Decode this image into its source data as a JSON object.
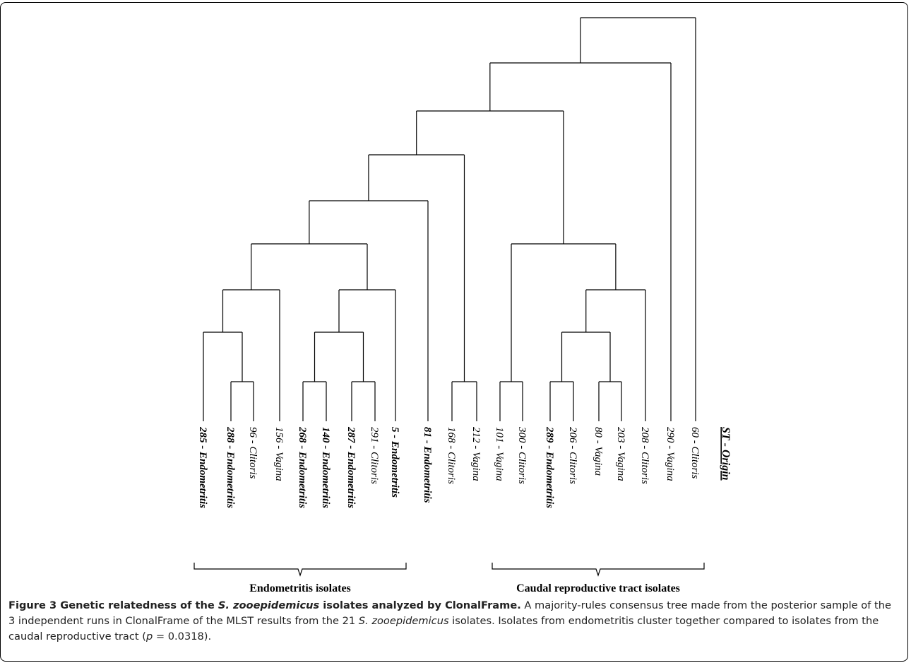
{
  "figure": {
    "header_label": "ST - Origin",
    "leaves": [
      {
        "st": "285",
        "origin": "Endometritis"
      },
      {
        "st": "288",
        "origin": "Endometritis"
      },
      {
        "st": "96",
        "origin": "Clitoris"
      },
      {
        "st": "156",
        "origin": "Vagina"
      },
      {
        "st": "268",
        "origin": "Endometritis"
      },
      {
        "st": "140",
        "origin": "Endometritis"
      },
      {
        "st": "287",
        "origin": "Endometritis"
      },
      {
        "st": "291",
        "origin": "Clitoris"
      },
      {
        "st": "5",
        "origin": "Endometritis"
      },
      {
        "st": "81",
        "origin": "Endometritis"
      },
      {
        "st": "168",
        "origin": "Clitoris"
      },
      {
        "st": "212",
        "origin": "Vagina"
      },
      {
        "st": "101",
        "origin": "Vagina"
      },
      {
        "st": "300",
        "origin": "Clitoris"
      },
      {
        "st": "289",
        "origin": "Endometritis"
      },
      {
        "st": "206",
        "origin": "Clitoris"
      },
      {
        "st": "80",
        "origin": "Vagina"
      },
      {
        "st": "203",
        "origin": "Vagina"
      },
      {
        "st": "208",
        "origin": "Clitoris"
      },
      {
        "st": "290",
        "origin": "Vagina"
      },
      {
        "st": "60",
        "origin": "Clitoris"
      }
    ],
    "groups": [
      {
        "label": "Endometritis isolates"
      },
      {
        "label": "Caudal reproductive tract isolates"
      }
    ]
  },
  "caption": {
    "title_prefix": "Figure 3 Genetic relatedness of the ",
    "title_species": "S. zooepidemicus",
    "title_suffix": " isolates analyzed by ClonalFrame.",
    "text_1": " A majority-rules consensus tree made from the posterior sample of the 3 independent runs in ClonalFrame of the MLST results from the 21 ",
    "text_species": "S. zooepidemicus",
    "text_2": " isolates. Isolates from endometritis cluster together compared to isolates from the caudal reproductive tract (",
    "p_symbol": "p",
    "p_value": " = 0.0318)."
  }
}
